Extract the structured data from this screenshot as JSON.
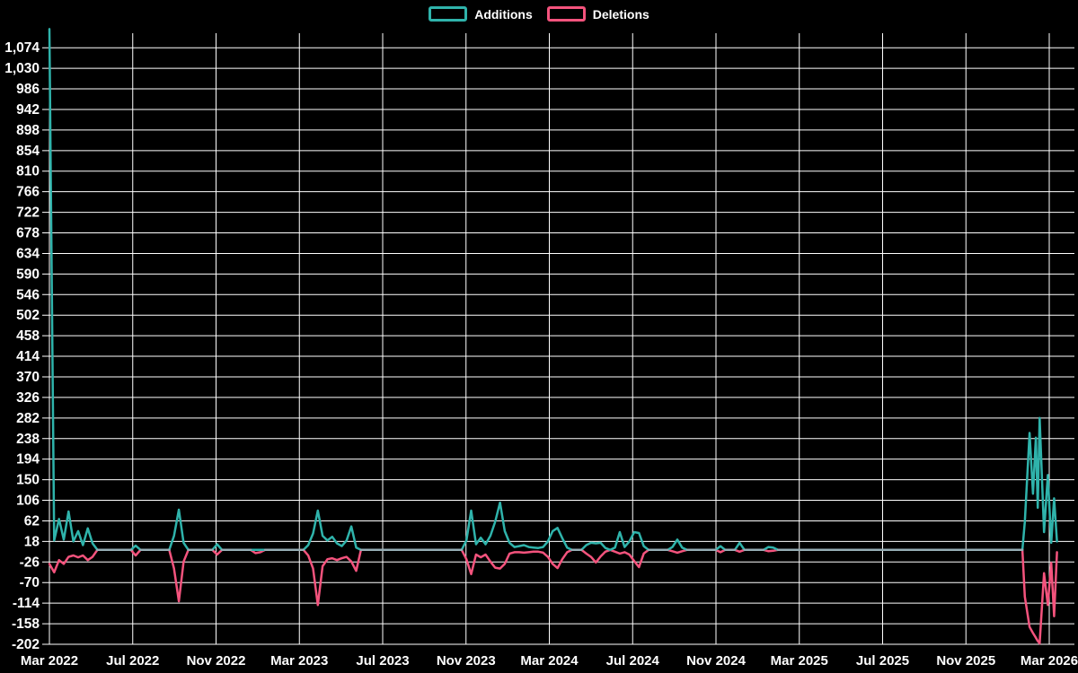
{
  "legend": {
    "items": [
      {
        "label": "Additions",
        "color": "#2fb3ab"
      },
      {
        "label": "Deletions",
        "color": "#f4537d"
      }
    ]
  },
  "chart_data": {
    "type": "line",
    "title": "",
    "xlabel": "",
    "ylabel": "",
    "grid": true,
    "legend_position": "top-center",
    "background_color": "#000000",
    "gridline_color": "#ffffff",
    "label_color": "#ffffff",
    "baseline_overlap_color": "#96adb5",
    "x_axis": {
      "tick_labels": [
        "Mar 2022",
        "Jul 2022",
        "Nov 2022",
        "Mar 2023",
        "Jul 2023",
        "Nov 2023",
        "Mar 2024",
        "Jul 2024",
        "Nov 2024",
        "Mar 2025",
        "Jul 2025",
        "Nov 2025",
        "Mar 2026"
      ],
      "unit": "weeks since Mar 2022",
      "weeks_per_tick": 17.383,
      "total_weeks": 210.2
    },
    "y_axis": {
      "min": -202,
      "max": 1074,
      "step": 44,
      "tick_labels": [
        "-202",
        "-158",
        "-114",
        "-70",
        "-26",
        "18",
        "62",
        "106",
        "150",
        "194",
        "238",
        "282",
        "326",
        "370",
        "414",
        "458",
        "502",
        "546",
        "590",
        "634",
        "678",
        "722",
        "766",
        "810",
        "854",
        "898",
        "942",
        "986",
        "1,030",
        "1,074"
      ]
    },
    "series": [
      {
        "name": "Additions",
        "color": "#2fb3ab",
        "points": [
          [
            0,
            1114
          ],
          [
            1,
            20
          ],
          [
            2,
            66
          ],
          [
            3,
            22
          ],
          [
            4,
            82
          ],
          [
            5,
            18
          ],
          [
            6,
            40
          ],
          [
            7,
            10
          ],
          [
            8,
            46
          ],
          [
            9,
            14
          ],
          [
            10,
            0
          ],
          [
            17,
            0
          ],
          [
            18,
            9
          ],
          [
            19,
            0
          ],
          [
            25,
            0
          ],
          [
            26,
            30
          ],
          [
            27,
            86
          ],
          [
            28,
            15
          ],
          [
            29,
            0
          ],
          [
            34,
            0
          ],
          [
            35,
            12
          ],
          [
            36,
            0
          ],
          [
            42,
            0
          ],
          [
            43,
            0
          ],
          [
            44,
            0
          ],
          [
            45,
            0
          ],
          [
            53,
            0
          ],
          [
            54,
            10
          ],
          [
            55,
            35
          ],
          [
            56,
            84
          ],
          [
            57,
            30
          ],
          [
            58,
            20
          ],
          [
            59,
            28
          ],
          [
            60,
            14
          ],
          [
            61,
            8
          ],
          [
            62,
            20
          ],
          [
            63,
            50
          ],
          [
            64,
            5
          ],
          [
            65,
            0
          ],
          [
            86,
            0
          ],
          [
            87,
            20
          ],
          [
            88,
            84
          ],
          [
            89,
            12
          ],
          [
            90,
            26
          ],
          [
            91,
            12
          ],
          [
            92,
            30
          ],
          [
            93,
            60
          ],
          [
            94,
            101
          ],
          [
            95,
            40
          ],
          [
            96,
            15
          ],
          [
            97,
            6
          ],
          [
            98,
            8
          ],
          [
            99,
            10
          ],
          [
            100,
            6
          ],
          [
            101,
            5
          ],
          [
            102,
            4
          ],
          [
            103,
            6
          ],
          [
            104,
            18
          ],
          [
            105,
            40
          ],
          [
            106,
            47
          ],
          [
            107,
            25
          ],
          [
            108,
            5
          ],
          [
            109,
            0
          ],
          [
            111,
            0
          ],
          [
            112,
            10
          ],
          [
            113,
            15
          ],
          [
            114,
            14
          ],
          [
            115,
            15
          ],
          [
            116,
            4
          ],
          [
            117,
            0
          ],
          [
            118,
            5
          ],
          [
            119,
            38
          ],
          [
            120,
            6
          ],
          [
            121,
            18
          ],
          [
            122,
            38
          ],
          [
            123,
            36
          ],
          [
            124,
            8
          ],
          [
            125,
            0
          ],
          [
            129,
            0
          ],
          [
            130,
            6
          ],
          [
            131,
            22
          ],
          [
            132,
            5
          ],
          [
            133,
            0
          ],
          [
            139,
            0
          ],
          [
            140,
            8
          ],
          [
            141,
            0
          ],
          [
            143,
            0
          ],
          [
            144,
            15
          ],
          [
            145,
            0
          ],
          [
            149,
            0
          ],
          [
            150,
            6
          ],
          [
            151,
            5
          ],
          [
            152,
            0
          ],
          [
            203,
            0
          ],
          [
            203.5,
            60
          ],
          [
            204.5,
            250
          ],
          [
            205.2,
            120
          ],
          [
            205.8,
            240
          ],
          [
            206.2,
            90
          ],
          [
            206.6,
            282
          ],
          [
            207.5,
            38
          ],
          [
            208.3,
            160
          ],
          [
            209,
            15
          ],
          [
            209.6,
            110
          ],
          [
            210.2,
            18
          ]
        ]
      },
      {
        "name": "Deletions",
        "color": "#f4537d",
        "points": [
          [
            0,
            -30
          ],
          [
            1,
            -48
          ],
          [
            2,
            -22
          ],
          [
            3,
            -30
          ],
          [
            4,
            -15
          ],
          [
            5,
            -12
          ],
          [
            6,
            -16
          ],
          [
            7,
            -12
          ],
          [
            8,
            -22
          ],
          [
            9,
            -15
          ],
          [
            10,
            0
          ],
          [
            17,
            0
          ],
          [
            18,
            -12
          ],
          [
            19,
            0
          ],
          [
            25,
            0
          ],
          [
            26,
            -40
          ],
          [
            27,
            -110
          ],
          [
            28,
            -25
          ],
          [
            29,
            0
          ],
          [
            34,
            0
          ],
          [
            35,
            -10
          ],
          [
            36,
            0
          ],
          [
            42,
            0
          ],
          [
            43,
            -7
          ],
          [
            44,
            -5
          ],
          [
            45,
            0
          ],
          [
            53,
            0
          ],
          [
            54,
            -12
          ],
          [
            55,
            -40
          ],
          [
            56,
            -118
          ],
          [
            57,
            -35
          ],
          [
            58,
            -20
          ],
          [
            59,
            -18
          ],
          [
            60,
            -22
          ],
          [
            61,
            -18
          ],
          [
            62,
            -15
          ],
          [
            63,
            -25
          ],
          [
            64,
            -45
          ],
          [
            65,
            0
          ],
          [
            86,
            0
          ],
          [
            87,
            -20
          ],
          [
            88,
            -52
          ],
          [
            89,
            -10
          ],
          [
            90,
            -16
          ],
          [
            91,
            -10
          ],
          [
            92,
            -25
          ],
          [
            93,
            -38
          ],
          [
            94,
            -40
          ],
          [
            95,
            -30
          ],
          [
            96,
            -8
          ],
          [
            97,
            -5
          ],
          [
            98,
            -5
          ],
          [
            99,
            -6
          ],
          [
            100,
            -5
          ],
          [
            101,
            -4
          ],
          [
            102,
            -4
          ],
          [
            103,
            -6
          ],
          [
            104,
            -15
          ],
          [
            105,
            -30
          ],
          [
            106,
            -39
          ],
          [
            107,
            -20
          ],
          [
            108,
            -5
          ],
          [
            109,
            0
          ],
          [
            111,
            0
          ],
          [
            112,
            -8
          ],
          [
            113,
            -15
          ],
          [
            114,
            -27
          ],
          [
            115,
            -14
          ],
          [
            116,
            -4
          ],
          [
            117,
            0
          ],
          [
            118,
            -4
          ],
          [
            119,
            -8
          ],
          [
            120,
            -5
          ],
          [
            121,
            -10
          ],
          [
            122,
            -24
          ],
          [
            123,
            -37
          ],
          [
            124,
            -8
          ],
          [
            125,
            0
          ],
          [
            129,
            0
          ],
          [
            130,
            -3
          ],
          [
            131,
            -6
          ],
          [
            132,
            -3
          ],
          [
            133,
            0
          ],
          [
            139,
            0
          ],
          [
            140,
            -5
          ],
          [
            141,
            0
          ],
          [
            143,
            0
          ],
          [
            144,
            -4
          ],
          [
            145,
            0
          ],
          [
            149,
            0
          ],
          [
            150,
            -3
          ],
          [
            151,
            -2
          ],
          [
            152,
            0
          ],
          [
            203,
            0
          ],
          [
            203.5,
            -100
          ],
          [
            204.5,
            -165
          ],
          [
            205.2,
            -178
          ],
          [
            205.8,
            -188
          ],
          [
            206.2,
            -195
          ],
          [
            206.6,
            -200
          ],
          [
            207.5,
            -50
          ],
          [
            208.3,
            -118
          ],
          [
            209,
            -28
          ],
          [
            209.6,
            -142
          ],
          [
            210.2,
            -5
          ]
        ]
      }
    ]
  }
}
